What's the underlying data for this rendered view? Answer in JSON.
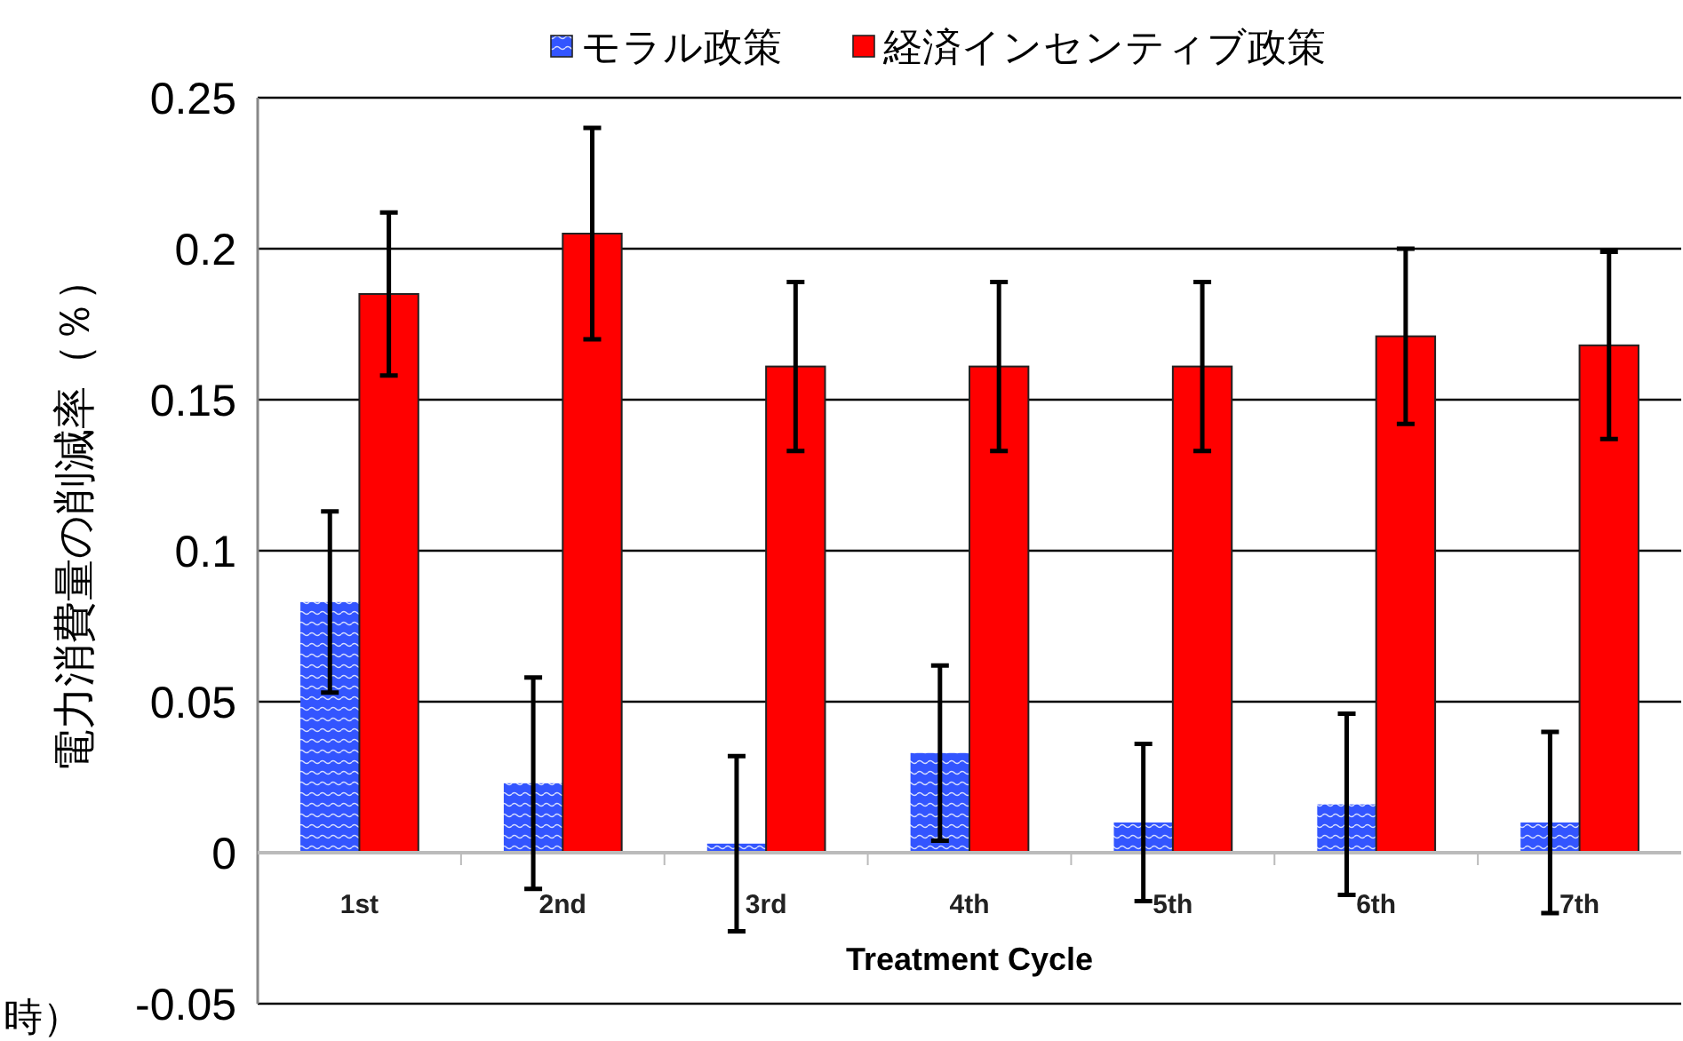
{
  "chart_data": {
    "type": "bar",
    "xlabel": "Treatment Cycle",
    "ylabel": "電力消費量の削減率（％）",
    "categories": [
      "1st",
      "2nd",
      "3rd",
      "4th",
      "5th",
      "6th",
      "7th"
    ],
    "series": [
      {
        "name": "モラル政策",
        "color": "#3355ff",
        "values": [
          0.083,
          0.023,
          0.003,
          0.033,
          0.01,
          0.016,
          0.01
        ],
        "errors": [
          0.03,
          0.035,
          0.029,
          0.029,
          0.026,
          0.03,
          0.03
        ]
      },
      {
        "name": "経済インセンティブ政策",
        "color": "#ff0000",
        "values": [
          0.185,
          0.205,
          0.161,
          0.161,
          0.161,
          0.171,
          0.168
        ],
        "errors": [
          0.027,
          0.035,
          0.028,
          0.028,
          0.028,
          0.029,
          0.031
        ]
      }
    ],
    "ylim": [
      -0.05,
      0.25
    ],
    "yticks": [
      -0.05,
      0,
      0.05,
      0.1,
      0.15,
      0.2,
      0.25
    ],
    "grid": "y",
    "legend": "top",
    "annotations": [
      "時）"
    ]
  }
}
